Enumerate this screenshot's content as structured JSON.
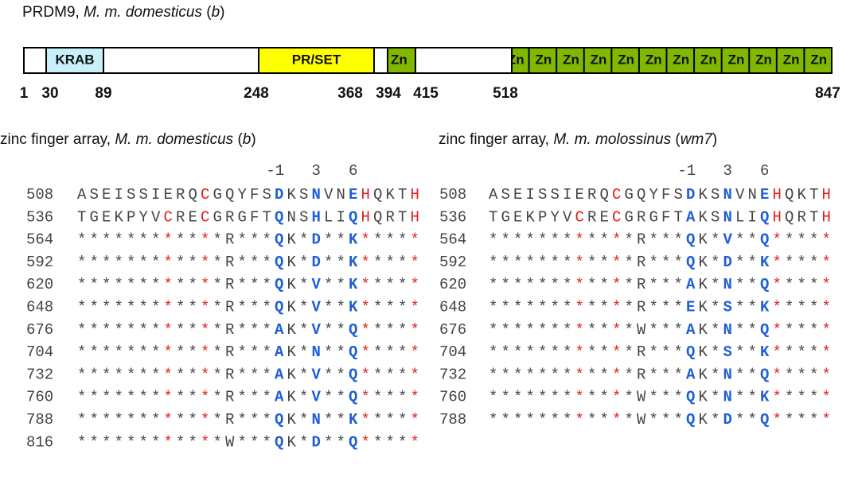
{
  "title": [
    "PRDM9, ",
    "M. m. domesticus",
    " (",
    "b",
    ")"
  ],
  "domains": [
    {
      "label": "KRAB"
    },
    {
      "label": "PR/SET"
    },
    {
      "label": "Zn"
    }
  ],
  "zn_array": [
    "Zn",
    "Zn",
    "Zn",
    "Zn",
    "Zn",
    "Zn",
    "Zn",
    "Zn",
    "Zn",
    "Zn",
    "Zn",
    "Zn"
  ],
  "positions": [
    1,
    30,
    89,
    248,
    368,
    394,
    415,
    518,
    847
  ],
  "panels": [
    {
      "subtitle": [
        "zinc finger array, ",
        "M. m. domesticus",
        " (",
        "b",
        ")"
      ],
      "header": [
        "-1",
        "3",
        "6"
      ],
      "rows": [
        {
          "pos": 508,
          "seq": "ASEISSIERQCGQYFSDKSNVNEHQKTH"
        },
        {
          "pos": 536,
          "seq": "TGEKPYVCRECGRGFTQNSHLIQHQRTH"
        },
        {
          "pos": 564,
          "seq": "************R***QK*D**K*****"
        },
        {
          "pos": 592,
          "seq": "************R***QK*D**K*****"
        },
        {
          "pos": 620,
          "seq": "************R***QK*V**K*****"
        },
        {
          "pos": 648,
          "seq": "************R***QK*V**K*****"
        },
        {
          "pos": 676,
          "seq": "************R***AK*V**Q*****"
        },
        {
          "pos": 704,
          "seq": "************R***AK*N**Q*****"
        },
        {
          "pos": 732,
          "seq": "************R***AK*V**Q*****"
        },
        {
          "pos": 760,
          "seq": "************R***AK*V**Q*****"
        },
        {
          "pos": 788,
          "seq": "************R***QK*N**K*****"
        },
        {
          "pos": 816,
          "seq": "************W***QK*D**Q*****"
        }
      ]
    },
    {
      "subtitle": [
        "zinc finger array, ",
        "M. m. molossinus",
        " (",
        "wm7",
        ")"
      ],
      "header": [
        "-1",
        "3",
        "6"
      ],
      "rows": [
        {
          "pos": 508,
          "seq": "ASEISSIERQCGQYFSDKSNVNEHQKTH"
        },
        {
          "pos": 536,
          "seq": "TGEKPYVCRECGRGFTAKSNLIQHQRTH"
        },
        {
          "pos": 564,
          "seq": "************R***QK*V**Q*****"
        },
        {
          "pos": 592,
          "seq": "************R***QK*D**K*****"
        },
        {
          "pos": 620,
          "seq": "************R***AK*N**Q*****"
        },
        {
          "pos": 648,
          "seq": "************R***EK*S**K*****"
        },
        {
          "pos": 676,
          "seq": "************W***AK*N**Q*****"
        },
        {
          "pos": 704,
          "seq": "************R***QK*S**K*****"
        },
        {
          "pos": 732,
          "seq": "************R***AK*N**Q*****"
        },
        {
          "pos": 760,
          "seq": "************W***QK*N**K*****"
        },
        {
          "pos": 788,
          "seq": "************W***QK*D**Q*****"
        }
      ]
    }
  ]
}
